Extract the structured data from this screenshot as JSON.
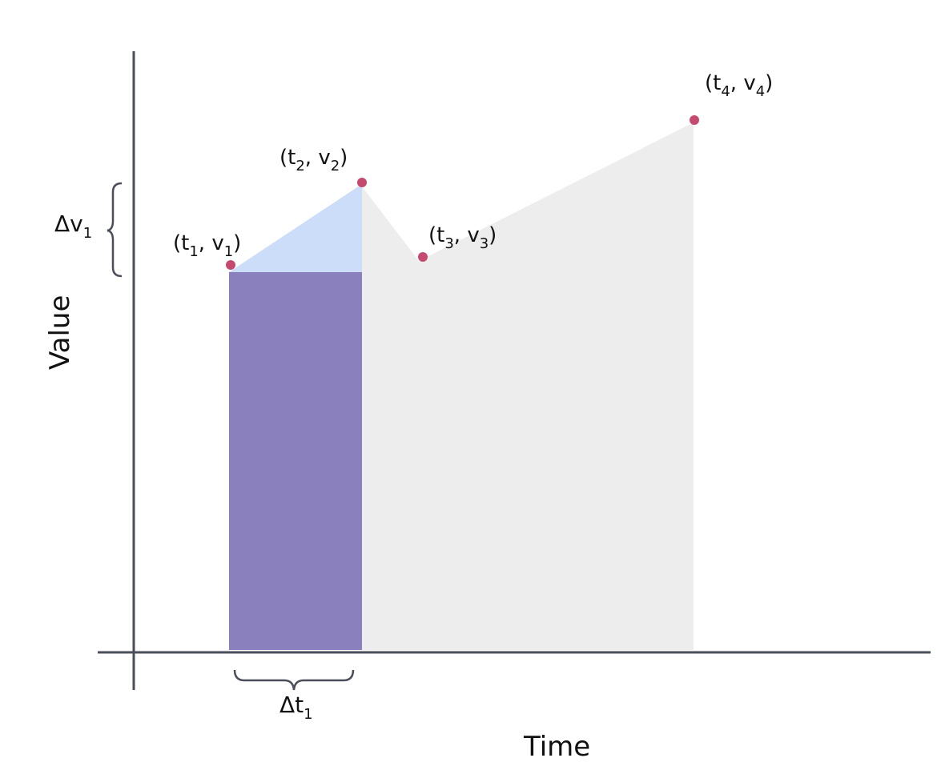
{
  "axes": {
    "x_label": "Time",
    "y_label": "Value"
  },
  "colors": {
    "axis": "#4a4e5a",
    "point": "#c44a70",
    "rectangle": "#8a80bd",
    "triangle": "#cbddf9",
    "background_area": "#ededed",
    "brace": "#4a4e5a"
  },
  "points": [
    {
      "label_base": "(t",
      "sub_a": "1",
      "mid": ", v",
      "sub_b": "1",
      "close": ")"
    },
    {
      "label_base": "(t",
      "sub_a": "2",
      "mid": ", v",
      "sub_b": "2",
      "close": ")"
    },
    {
      "label_base": "(t",
      "sub_a": "3",
      "mid": ", v",
      "sub_b": "3",
      "close": ")"
    },
    {
      "label_base": "(t",
      "sub_a": "4",
      "mid": ", v",
      "sub_b": "4",
      "close": ")"
    }
  ],
  "delta_t": {
    "symbol": "Δt",
    "sub": "1"
  },
  "delta_v": {
    "symbol": "Δv",
    "sub": "1"
  }
}
